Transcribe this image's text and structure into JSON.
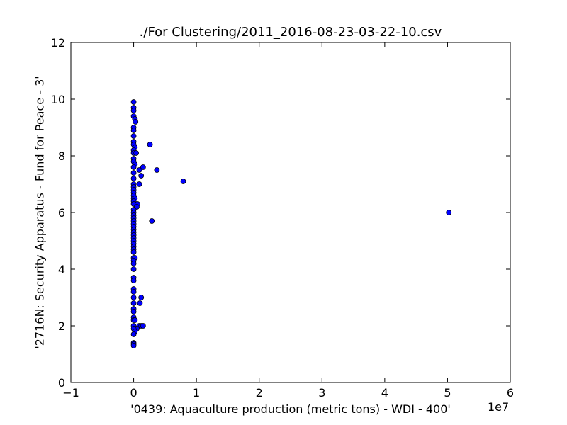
{
  "chart_data": {
    "type": "scatter",
    "title": "./For Clustering/2011_2016-08-23-03-22-10.csv",
    "xlabel": "'0439: Aquaculture production  (metric tons) - WDI - 400'",
    "ylabel": "'2716N: Security Apparatus - Fund for Peace - 3'",
    "x_offset_label": "1e7",
    "x_tick_labels": [
      "−1",
      "0",
      "1",
      "2",
      "3",
      "4",
      "5",
      "6"
    ],
    "y_tick_labels": [
      "0",
      "2",
      "4",
      "6",
      "8",
      "10",
      "12"
    ],
    "xlim": [
      -10000000,
      60000000
    ],
    "ylim": [
      0,
      12
    ],
    "grid": false,
    "marker_color": "#0000ff",
    "points": [
      {
        "x": 0,
        "y": 9.9
      },
      {
        "x": 0,
        "y": 9.7
      },
      {
        "x": 0,
        "y": 9.6
      },
      {
        "x": 0,
        "y": 9.4
      },
      {
        "x": 200000,
        "y": 9.3
      },
      {
        "x": 300000,
        "y": 9.2
      },
      {
        "x": 0,
        "y": 9.0
      },
      {
        "x": 0,
        "y": 8.9
      },
      {
        "x": 0,
        "y": 8.7
      },
      {
        "x": 0,
        "y": 8.5
      },
      {
        "x": 0,
        "y": 8.4
      },
      {
        "x": 200000,
        "y": 8.3
      },
      {
        "x": 0,
        "y": 8.2
      },
      {
        "x": 0,
        "y": 8.1
      },
      {
        "x": 400000,
        "y": 8.1
      },
      {
        "x": 2600000,
        "y": 8.4
      },
      {
        "x": 0,
        "y": 7.9
      },
      {
        "x": 0,
        "y": 7.8
      },
      {
        "x": 200000,
        "y": 7.7
      },
      {
        "x": 0,
        "y": 7.6
      },
      {
        "x": 1500000,
        "y": 7.6
      },
      {
        "x": 900000,
        "y": 7.5
      },
      {
        "x": 3700000,
        "y": 7.5
      },
      {
        "x": 0,
        "y": 7.4
      },
      {
        "x": 1200000,
        "y": 7.3
      },
      {
        "x": 0,
        "y": 7.2
      },
      {
        "x": 7900000,
        "y": 7.1
      },
      {
        "x": 0,
        "y": 7.0
      },
      {
        "x": 900000,
        "y": 7.0
      },
      {
        "x": 0,
        "y": 6.9
      },
      {
        "x": 0,
        "y": 6.8
      },
      {
        "x": 0,
        "y": 6.7
      },
      {
        "x": 0,
        "y": 6.6
      },
      {
        "x": 0,
        "y": 6.5
      },
      {
        "x": 200000,
        "y": 6.5
      },
      {
        "x": 0,
        "y": 6.4
      },
      {
        "x": 0,
        "y": 6.3
      },
      {
        "x": 600000,
        "y": 6.3
      },
      {
        "x": 500000,
        "y": 6.2
      },
      {
        "x": 0,
        "y": 6.1
      },
      {
        "x": 0,
        "y": 6.0
      },
      {
        "x": 50200000,
        "y": 6.0
      },
      {
        "x": 0,
        "y": 5.9
      },
      {
        "x": 0,
        "y": 5.8
      },
      {
        "x": 0,
        "y": 5.7
      },
      {
        "x": 2900000,
        "y": 5.7
      },
      {
        "x": 0,
        "y": 5.6
      },
      {
        "x": 0,
        "y": 5.5
      },
      {
        "x": 0,
        "y": 5.4
      },
      {
        "x": 0,
        "y": 5.3
      },
      {
        "x": 0,
        "y": 5.2
      },
      {
        "x": 0,
        "y": 5.1
      },
      {
        "x": 0,
        "y": 5.0
      },
      {
        "x": 0,
        "y": 4.9
      },
      {
        "x": 0,
        "y": 4.8
      },
      {
        "x": 0,
        "y": 4.7
      },
      {
        "x": 0,
        "y": 4.6
      },
      {
        "x": 0,
        "y": 4.4
      },
      {
        "x": 200000,
        "y": 4.4
      },
      {
        "x": 0,
        "y": 4.3
      },
      {
        "x": 0,
        "y": 4.2
      },
      {
        "x": 0,
        "y": 4.0
      },
      {
        "x": 0,
        "y": 3.7
      },
      {
        "x": 0,
        "y": 3.6
      },
      {
        "x": 0,
        "y": 3.3
      },
      {
        "x": 0,
        "y": 3.2
      },
      {
        "x": 0,
        "y": 3.0
      },
      {
        "x": 1200000,
        "y": 3.0
      },
      {
        "x": 0,
        "y": 2.8
      },
      {
        "x": 1000000,
        "y": 2.8
      },
      {
        "x": 0,
        "y": 2.6
      },
      {
        "x": 0,
        "y": 2.5
      },
      {
        "x": 0,
        "y": 2.3
      },
      {
        "x": 0,
        "y": 2.2
      },
      {
        "x": 200000,
        "y": 2.2
      },
      {
        "x": 0,
        "y": 2.0
      },
      {
        "x": 900000,
        "y": 2.0
      },
      {
        "x": 1200000,
        "y": 2.0
      },
      {
        "x": 1500000,
        "y": 2.0
      },
      {
        "x": 500000,
        "y": 1.9
      },
      {
        "x": 0,
        "y": 1.9
      },
      {
        "x": 200000,
        "y": 1.8
      },
      {
        "x": 0,
        "y": 1.7
      },
      {
        "x": 0,
        "y": 1.4
      },
      {
        "x": 0,
        "y": 1.35
      },
      {
        "x": 0,
        "y": 1.3
      }
    ]
  }
}
